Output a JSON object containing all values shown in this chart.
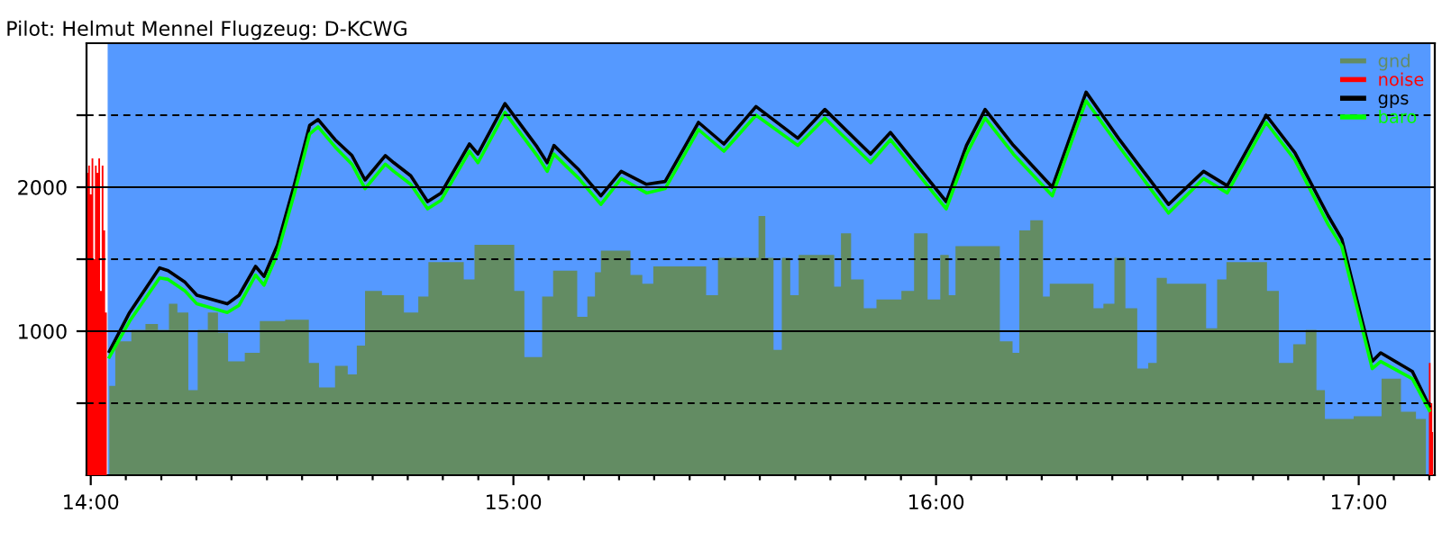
{
  "chart_data": {
    "type": "line",
    "title": "Pilot: Helmut Mennel Flugzeug: D-KCWG",
    "xlim": [
      13.99,
      17.18
    ],
    "ylim": [
      0,
      3000
    ],
    "xticks": [
      {
        "value": 14,
        "label": "14:00"
      },
      {
        "value": 14.083,
        "label": null
      },
      {
        "value": 14.167,
        "label": null
      },
      {
        "value": 14.25,
        "label": null
      },
      {
        "value": 14.333,
        "label": null
      },
      {
        "value": 14.417,
        "label": null
      },
      {
        "value": 14.5,
        "label": null
      },
      {
        "value": 14.583,
        "label": null
      },
      {
        "value": 14.667,
        "label": null
      },
      {
        "value": 14.75,
        "label": null
      },
      {
        "value": 14.833,
        "label": null
      },
      {
        "value": 14.917,
        "label": null
      },
      {
        "value": 15,
        "label": "15:00"
      },
      {
        "value": 15.083,
        "label": null
      },
      {
        "value": 15.167,
        "label": null
      },
      {
        "value": 15.25,
        "label": null
      },
      {
        "value": 15.333,
        "label": null
      },
      {
        "value": 15.417,
        "label": null
      },
      {
        "value": 15.5,
        "label": null
      },
      {
        "value": 15.583,
        "label": null
      },
      {
        "value": 15.667,
        "label": null
      },
      {
        "value": 15.75,
        "label": null
      },
      {
        "value": 15.833,
        "label": null
      },
      {
        "value": 15.917,
        "label": null
      },
      {
        "value": 16,
        "label": "16:00"
      },
      {
        "value": 16.083,
        "label": null
      },
      {
        "value": 16.167,
        "label": null
      },
      {
        "value": 16.25,
        "label": null
      },
      {
        "value": 16.333,
        "label": null
      },
      {
        "value": 16.417,
        "label": null
      },
      {
        "value": 16.5,
        "label": null
      },
      {
        "value": 16.583,
        "label": null
      },
      {
        "value": 16.667,
        "label": null
      },
      {
        "value": 16.75,
        "label": null
      },
      {
        "value": 16.833,
        "label": null
      },
      {
        "value": 16.917,
        "label": null
      },
      {
        "value": 17,
        "label": "17:00"
      },
      {
        "value": 17.083,
        "label": null
      },
      {
        "value": 17.167,
        "label": null
      }
    ],
    "yticks": [
      {
        "value": 500,
        "label": null
      },
      1000,
      {
        "value": 1500,
        "label": null
      },
      2000,
      {
        "value": 2500,
        "label": null
      }
    ],
    "grid": "y",
    "legend": "top right",
    "bands": [
      {
        "axis": "x",
        "from": 14.04,
        "to": 17.17,
        "label": null,
        "color": "#5599ff"
      }
    ],
    "series": [
      {
        "name": "gnd",
        "type": "area",
        "color": "#638c63",
        "x": [
          14.044,
          14.072,
          14.12,
          14.139,
          14.179,
          14.191,
          14.219,
          14.243,
          14.263,
          14.291,
          14.311,
          14.339,
          14.39,
          14.41,
          14.51,
          14.522,
          14.558,
          14.598,
          14.618,
          14.641,
          14.657,
          14.721,
          14.761,
          14.789,
          14.809,
          14.829,
          14.869,
          14.896,
          14.92,
          14.988,
          15.016,
          15.036,
          15.056,
          15.08,
          15.108,
          15.139,
          15.163,
          15.187,
          15.199,
          15.215,
          15.259,
          15.295,
          15.315,
          15.347,
          15.438,
          15.474,
          15.494,
          15.574,
          15.586,
          15.606,
          15.625,
          15.645,
          15.665,
          15.685,
          15.753,
          15.765,
          15.785,
          15.813,
          15.845,
          15.873,
          15.904,
          15.932,
          15.964,
          15.996,
          16.024,
          16.036,
          16.056,
          16.116,
          16.131,
          16.171,
          16.191,
          16.203,
          16.243,
          16.263,
          16.275,
          16.363,
          16.382,
          16.41,
          16.434,
          16.462,
          16.49,
          16.514,
          16.53,
          16.562,
          16.629,
          16.649,
          16.681,
          16.693,
          16.773,
          16.793,
          16.829,
          16.861,
          16.888,
          16.912,
          16.928,
          17.048,
          17.06,
          17.088,
          17.112,
          17.159
        ],
        "values": [
          620,
          930,
          1010,
          1050,
          1010,
          1190,
          1130,
          590,
          1010,
          1130,
          990,
          790,
          850,
          1070,
          1080,
          780,
          610,
          760,
          700,
          900,
          1280,
          1250,
          1130,
          1240,
          1480,
          1480,
          1480,
          1360,
          1600,
          1600,
          1280,
          820,
          820,
          1240,
          1420,
          1420,
          1100,
          1240,
          1410,
          1560,
          1560,
          1390,
          1330,
          1450,
          1450,
          1250,
          1510,
          1510,
          1800,
          1510,
          870,
          1510,
          1250,
          1530,
          1530,
          1310,
          1680,
          1360,
          1160,
          1220,
          1220,
          1280,
          1680,
          1220,
          1530,
          1250,
          1590,
          1590,
          1590,
          930,
          850,
          1700,
          1770,
          1240,
          1330,
          1330,
          1160,
          1190,
          1510,
          1160,
          740,
          780,
          1370,
          1330,
          1330,
          1020,
          1360,
          1480,
          1480,
          1280,
          780,
          910,
          1010,
          590,
          390,
          410,
          670,
          670,
          440,
          390
        ]
      },
      {
        "name": "noise",
        "type": "area",
        "color": "#ff0000",
        "x": [
          13.992,
          13.996,
          14.0,
          14.004,
          14.008,
          14.012,
          14.016,
          14.02,
          14.024,
          14.028,
          14.032,
          14.036,
          14.04,
          17.164,
          17.168,
          17.172,
          17.176
        ],
        "values": [
          2100,
          2150,
          1950,
          2200,
          1500,
          2150,
          2100,
          2200,
          1280,
          2150,
          1700,
          1130,
          0,
          0,
          780,
          500,
          300
        ]
      },
      {
        "name": "gps",
        "color": "#000000",
        "x": [
          14.044,
          14.092,
          14.163,
          14.183,
          14.223,
          14.251,
          14.323,
          14.351,
          14.39,
          14.41,
          14.442,
          14.482,
          14.518,
          14.538,
          14.578,
          14.618,
          14.649,
          14.697,
          14.717,
          14.757,
          14.797,
          14.829,
          14.896,
          14.916,
          14.98,
          15.056,
          15.08,
          15.096,
          15.127,
          15.155,
          15.207,
          15.255,
          15.315,
          15.359,
          15.438,
          15.498,
          15.574,
          15.673,
          15.737,
          15.845,
          15.892,
          16.024,
          16.072,
          16.116,
          16.183,
          16.275,
          16.355,
          16.434,
          16.55,
          16.633,
          16.689,
          16.781,
          16.849,
          16.928,
          16.96,
          17.032,
          17.052,
          17.127,
          17.167
        ],
        "values": [
          860,
          1130,
          1440,
          1420,
          1340,
          1250,
          1190,
          1250,
          1450,
          1380,
          1600,
          2020,
          2430,
          2470,
          2330,
          2220,
          2050,
          2220,
          2170,
          2080,
          1900,
          1960,
          2300,
          2230,
          2580,
          2280,
          2170,
          2290,
          2200,
          2120,
          1940,
          2110,
          2020,
          2040,
          2450,
          2300,
          2560,
          2340,
          2540,
          2230,
          2380,
          1900,
          2290,
          2540,
          2290,
          2000,
          2660,
          2330,
          1880,
          2110,
          2010,
          2500,
          2240,
          1800,
          1640,
          790,
          850,
          720,
          480
        ]
      },
      {
        "name": "baro",
        "color": "#00ff00",
        "x": [
          14.044,
          14.092,
          14.163,
          14.183,
          14.223,
          14.251,
          14.323,
          14.351,
          14.39,
          14.41,
          14.442,
          14.482,
          14.518,
          14.538,
          14.578,
          14.618,
          14.649,
          14.697,
          14.717,
          14.757,
          14.797,
          14.829,
          14.896,
          14.916,
          14.98,
          15.056,
          15.08,
          15.096,
          15.127,
          15.155,
          15.207,
          15.255,
          15.315,
          15.359,
          15.438,
          15.498,
          15.574,
          15.673,
          15.737,
          15.845,
          15.892,
          16.024,
          16.072,
          16.116,
          16.183,
          16.275,
          16.355,
          16.434,
          16.55,
          16.633,
          16.689,
          16.781,
          16.849,
          16.928,
          16.96,
          17.032,
          17.052,
          17.127,
          17.167
        ],
        "values": [
          820,
          1070,
          1370,
          1360,
          1280,
          1190,
          1130,
          1180,
          1390,
          1320,
          1540,
          1960,
          2370,
          2420,
          2280,
          2160,
          1990,
          2160,
          2110,
          2020,
          1850,
          1910,
          2250,
          2170,
          2520,
          2220,
          2110,
          2230,
          2140,
          2060,
          1880,
          2060,
          1960,
          1990,
          2400,
          2250,
          2500,
          2290,
          2480,
          2170,
          2330,
          1850,
          2230,
          2480,
          2230,
          1940,
          2600,
          2280,
          1820,
          2060,
          1960,
          2450,
          2190,
          1740,
          1590,
          740,
          790,
          670,
          450
        ]
      }
    ]
  }
}
